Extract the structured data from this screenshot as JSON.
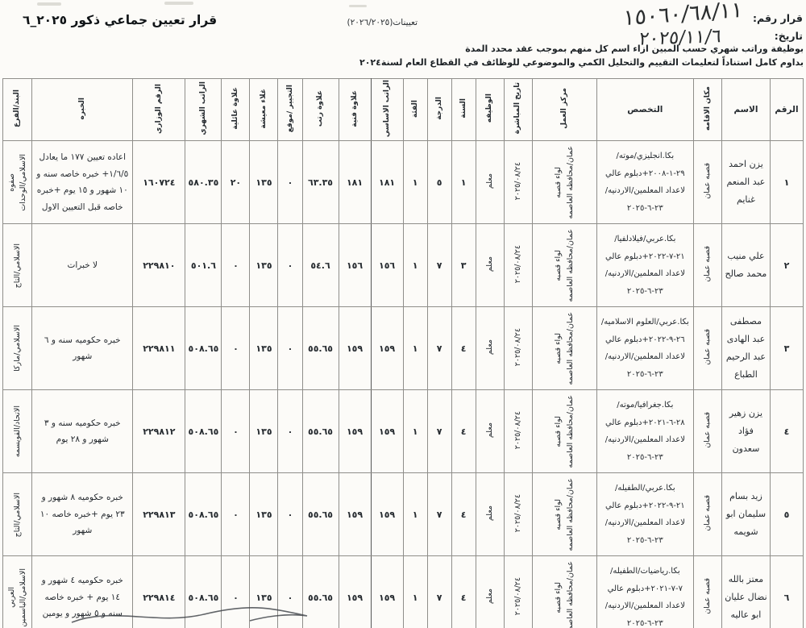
{
  "page": {
    "decision_no_label": "قرار رقم:",
    "decision_no_value": "١٥٠٦٠/٦٨/١١",
    "date_label": "تاريخ:",
    "date_value": "٢٠٢٥/١١/٦",
    "appointments_ref": "تعيينات(٢٠٢٦/٢٠٢٥)",
    "title": "قرار تعيين جماعي ذكور ٢٠٢٥_٦",
    "intro_line1": "بوظيفة وراتب شهري حسب المبين ازاء اسم كل منهم بموجب عقد محدد المدة",
    "intro_line2": "بداوم كامل استناداً لتعليمات التقييم والتحليل الكمي والموضوعي للوظائف في القطاع العام لسنة٢٠٢٤"
  },
  "table": {
    "headers": {
      "num": "الرقم",
      "name": "الاسم",
      "residence": "مكان الاقامه",
      "specialization": "التخصص",
      "work_center": "مركز العمل",
      "start_date": "تاريخ المباشرة",
      "job": "الوظيفه",
      "year": "السنة",
      "grade": "الدرجة",
      "category": "الفئة",
      "basic_salary": "الراتب الاساسي",
      "technical_allowance": "علاوة فنية",
      "rank_allowance": "علاوة رتب",
      "endorsement": "التجيير /موقع",
      "cost_of_living": "غلاء معيشة",
      "family_allowance": "علاوة عائلية",
      "monthly_salary": "الراتب الشهري",
      "ministerial_number": "الرقم الوزاري",
      "experience": "الخبره",
      "bank_branch": "البند/الفرع"
    },
    "rows": [
      {
        "num": "١",
        "name": "يزن احمد عبد المنعم غنايم",
        "residence": "قصبه عمان",
        "specialization": "بكا.انجليزي/موته/٢٩-١-٢٠٠٨+دبلوم عالي لاعداد المعلمين/الاردنيه/٢٣-٦-٢٠٢٥",
        "work_center": [
          "عمان/محافظه العاصمه",
          "لواء قصبه"
        ],
        "start_date": "٢٠٢٥/٠٨/٢٤",
        "job": "معلم",
        "year": "١",
        "grade": "٥",
        "category": "١",
        "basic_salary": "١٨١",
        "technical_allowance": "١٨١",
        "rank_allowance": "٦٣.٣٥",
        "endorsement": "٠",
        "cost_of_living": "١٣٥",
        "family_allowance": "٢٠",
        "monthly_salary": "٥٨٠.٣٥",
        "ministerial_number": "١٦٠٧٢٤",
        "experience": "اعاده تعيين ١٧٧ ما يعادل ١/٦/٥+ خبره خاصه سنه و ١٠ شهور و ١٥ يوم +خبره خاصه قبل التعيين الاول",
        "bank_branch": [
          "الاسلامي/الوحدات",
          "صفوه"
        ]
      },
      {
        "num": "٢",
        "name": "علي منيب محمد صالح",
        "residence": "قصبه عمان",
        "specialization": "بكا.عربي/فيلادلفيا/٢١-٧-٢٠٢٢+دبلوم عالي لاعداد المعلمين/الاردنيه/٢٣-٦-٢٠٢٥",
        "work_center": [
          "عمان/محافظه العاصمه",
          "لواء قصبه"
        ],
        "start_date": "٢٠٢٥/٠٨/٢٤",
        "job": "معلم",
        "year": "٣",
        "grade": "٧",
        "category": "١",
        "basic_salary": "١٥٦",
        "technical_allowance": "١٥٦",
        "rank_allowance": "٥٤.٦",
        "endorsement": "٠",
        "cost_of_living": "١٣٥",
        "family_allowance": "٠",
        "monthly_salary": "٥٠١.٦",
        "ministerial_number": "٢٢٩٨١٠",
        "experience": "لا خبرات",
        "bank_branch": [
          "الاسلامي/التاج"
        ]
      },
      {
        "num": "٣",
        "name": "مصطفى عبد الهادى عبد الرحيم الطباع",
        "residence": "قصبه عمان",
        "specialization": "بكا.عربي/العلوم الاسلاميه/٢٦-٩-٢٠٢٢+دبلوم عالي لاعداد المعلمين/الاردنيه/٢٣-٦-٢٠٢٥",
        "work_center": [
          "عمان/محافظه العاصمه",
          "لواء قصبه"
        ],
        "start_date": "٢٠٢٥/٠٨/٢٤",
        "job": "معلم",
        "year": "٤",
        "grade": "٧",
        "category": "١",
        "basic_salary": "١٥٩",
        "technical_allowance": "١٥٩",
        "rank_allowance": "٥٥.٦٥",
        "endorsement": "٠",
        "cost_of_living": "١٣٥",
        "family_allowance": "٠",
        "monthly_salary": "٥٠٨.٦٥",
        "ministerial_number": "٢٢٩٨١١",
        "experience": "خبره حكوميه سنه و ٦ شهور",
        "bank_branch": [
          "الاسلامي/ماركا"
        ]
      },
      {
        "num": "٤",
        "name": "يزن زهير فؤاد سعدون",
        "residence": "قصبه عمان",
        "specialization": "بكا.جغرافيا/موته/٢٨-٦-٢٠٢١+دبلوم عالي لاعداد المعلمين/الاردنيه/٢٣-٦-٢٠٢٥",
        "work_center": [
          "عمان/محافظه العاصمه",
          "لواء قصبه"
        ],
        "start_date": "٢٠٢٥/٠٨/٢٤",
        "job": "معلم",
        "year": "٤",
        "grade": "٧",
        "category": "١",
        "basic_salary": "١٥٩",
        "technical_allowance": "١٥٩",
        "rank_allowance": "٥٥.٦٥",
        "endorsement": "٠",
        "cost_of_living": "١٣٥",
        "family_allowance": "٠",
        "monthly_salary": "٥٠٨.٦٥",
        "ministerial_number": "٢٢٩٨١٢",
        "experience": "خبره حكوميه سنه و ٣ شهور و ٢٨ يوم",
        "bank_branch": [
          "الاتحاد/القويسمه"
        ]
      },
      {
        "num": "٥",
        "name": "زيد بسام سليمان ابو شويمه",
        "residence": "قصبه عمان",
        "specialization": "بكا.عربي/الطفيله/٢١-٩-٢٠٢٢+دبلوم عالي لاعداد المعلمين/الاردنيه/٢٣-٦-٢٠٢٥",
        "work_center": [
          "عمان/محافظه العاصمه",
          "لواء قصبه"
        ],
        "start_date": "٢٠٢٥/٠٨/٢٤",
        "job": "معلم",
        "year": "٤",
        "grade": "٧",
        "category": "١",
        "basic_salary": "١٥٩",
        "technical_allowance": "١٥٩",
        "rank_allowance": "٥٥.٦٥",
        "endorsement": "٠",
        "cost_of_living": "١٣٥",
        "family_allowance": "٠",
        "monthly_salary": "٥٠٨.٦٥",
        "ministerial_number": "٢٢٩٨١٣",
        "experience": "خبره حكوميه ٨ شهور و ٢٣ يوم +خبره خاصه ١٠ شهور",
        "bank_branch": [
          "الاسلامي/التاج"
        ]
      },
      {
        "num": "٦",
        "name": "معتز بالله نضال عليان ابو عاليه",
        "residence": "قصبه عمان",
        "specialization": "بكا.رياضيات/الطفيله/٧-٧-٢٠٢١+دبلوم عالي لاعداد المعلمين/الاردنيه/٢٣-٦-٢٠٢٥",
        "work_center": [
          "عمان/محافظه العاصمه",
          "لواء قصبه"
        ],
        "start_date": "٢٠٢٥/٠٨/٢٤",
        "job": "معلم",
        "year": "٤",
        "grade": "٧",
        "category": "١",
        "basic_salary": "١٥٩",
        "technical_allowance": "١٥٩",
        "rank_allowance": "٥٥.٦٥",
        "endorsement": "٠",
        "cost_of_living": "١٣٥",
        "family_allowance": "٠",
        "monthly_salary": "٥٠٨.٦٥",
        "ministerial_number": "٢٢٩٨١٤",
        "experience": "خبره حكوميه ٤ شهور و ١٤ يوم + خبره خاصه سنه و ٥ شهور و يومين",
        "bank_branch": [
          "الاسلامي/الياسمين",
          "العربي"
        ]
      }
    ]
  }
}
